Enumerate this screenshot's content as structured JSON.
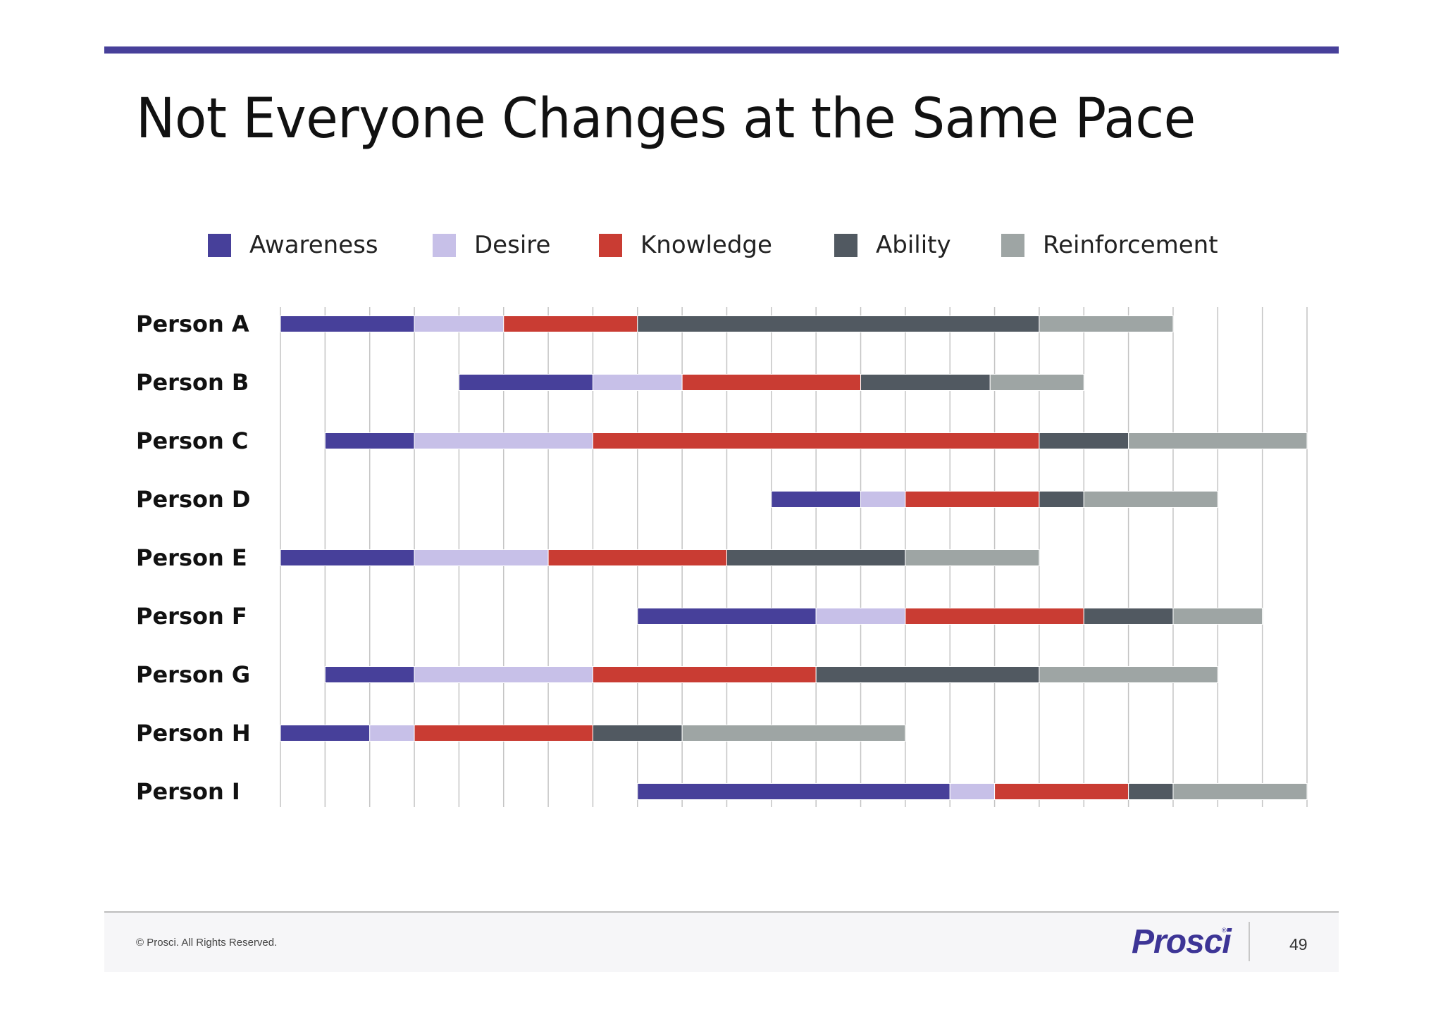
{
  "slide": {
    "title": "Not Everyone Changes at the Same Pace",
    "copyright": "© Prosci. All Rights Reserved.",
    "logo_text": "Prosci",
    "logo_mark": "®",
    "page_number": "49"
  },
  "colors": {
    "accent_rule": "#47409a",
    "Awareness": "#47409a",
    "Desire": "#c7c0e8",
    "Knowledge": "#c93c33",
    "Ability": "#515961",
    "Reinforcement": "#9ea5a4"
  },
  "chart_data": {
    "type": "bar",
    "orientation": "horizontal",
    "stacked": true,
    "legend_position": "top",
    "grid": true,
    "xlim": [
      0,
      23
    ],
    "categories": [
      "Person A",
      "Person B",
      "Person C",
      "Person D",
      "Person E",
      "Person F",
      "Person G",
      "Person H",
      "Person I"
    ],
    "series_names": [
      "Awareness",
      "Desire",
      "Knowledge",
      "Ability",
      "Reinforcement"
    ],
    "rows": [
      {
        "person": "Person A",
        "segments": [
          {
            "phase": "Awareness",
            "start": 0,
            "end": 3
          },
          {
            "phase": "Desire",
            "start": 3,
            "end": 5
          },
          {
            "phase": "Knowledge",
            "start": 5,
            "end": 8
          },
          {
            "phase": "Ability",
            "start": 8,
            "end": 17
          },
          {
            "phase": "Reinforcement",
            "start": 17,
            "end": 20
          }
        ]
      },
      {
        "person": "Person B",
        "segments": [
          {
            "phase": "Awareness",
            "start": 4,
            "end": 7
          },
          {
            "phase": "Desire",
            "start": 7,
            "end": 9
          },
          {
            "phase": "Knowledge",
            "start": 9,
            "end": 13
          },
          {
            "phase": "Ability",
            "start": 13,
            "end": 15.9
          },
          {
            "phase": "Reinforcement",
            "start": 15.9,
            "end": 18
          }
        ]
      },
      {
        "person": "Person C",
        "segments": [
          {
            "phase": "Awareness",
            "start": 1,
            "end": 3
          },
          {
            "phase": "Desire",
            "start": 3,
            "end": 7
          },
          {
            "phase": "Knowledge",
            "start": 7,
            "end": 17
          },
          {
            "phase": "Ability",
            "start": 17,
            "end": 19
          },
          {
            "phase": "Reinforcement",
            "start": 19,
            "end": 23
          }
        ]
      },
      {
        "person": "Person D",
        "segments": [
          {
            "phase": "Awareness",
            "start": 11,
            "end": 13
          },
          {
            "phase": "Desire",
            "start": 13,
            "end": 14
          },
          {
            "phase": "Knowledge",
            "start": 14,
            "end": 17
          },
          {
            "phase": "Ability",
            "start": 17,
            "end": 18
          },
          {
            "phase": "Reinforcement",
            "start": 18,
            "end": 21
          }
        ]
      },
      {
        "person": "Person E",
        "segments": [
          {
            "phase": "Awareness",
            "start": 0,
            "end": 3
          },
          {
            "phase": "Desire",
            "start": 3,
            "end": 6
          },
          {
            "phase": "Knowledge",
            "start": 6,
            "end": 10
          },
          {
            "phase": "Ability",
            "start": 10,
            "end": 14
          },
          {
            "phase": "Reinforcement",
            "start": 14,
            "end": 17
          }
        ]
      },
      {
        "person": "Person F",
        "segments": [
          {
            "phase": "Awareness",
            "start": 8,
            "end": 12
          },
          {
            "phase": "Desire",
            "start": 12,
            "end": 14
          },
          {
            "phase": "Knowledge",
            "start": 14,
            "end": 18
          },
          {
            "phase": "Ability",
            "start": 18,
            "end": 20
          },
          {
            "phase": "Reinforcement",
            "start": 20,
            "end": 22
          }
        ]
      },
      {
        "person": "Person G",
        "segments": [
          {
            "phase": "Awareness",
            "start": 1,
            "end": 3
          },
          {
            "phase": "Desire",
            "start": 3,
            "end": 7
          },
          {
            "phase": "Knowledge",
            "start": 7,
            "end": 12
          },
          {
            "phase": "Ability",
            "start": 12,
            "end": 17
          },
          {
            "phase": "Reinforcement",
            "start": 17,
            "end": 21
          }
        ]
      },
      {
        "person": "Person H",
        "segments": [
          {
            "phase": "Awareness",
            "start": 0,
            "end": 2
          },
          {
            "phase": "Desire",
            "start": 2,
            "end": 3
          },
          {
            "phase": "Knowledge",
            "start": 3,
            "end": 7
          },
          {
            "phase": "Ability",
            "start": 7,
            "end": 9
          },
          {
            "phase": "Reinforcement",
            "start": 9,
            "end": 14
          }
        ]
      },
      {
        "person": "Person I",
        "segments": [
          {
            "phase": "Awareness",
            "start": 8,
            "end": 15
          },
          {
            "phase": "Desire",
            "start": 15,
            "end": 16
          },
          {
            "phase": "Knowledge",
            "start": 16,
            "end": 19
          },
          {
            "phase": "Ability",
            "start": 19,
            "end": 20
          },
          {
            "phase": "Reinforcement",
            "start": 20,
            "end": 23
          }
        ]
      }
    ]
  }
}
